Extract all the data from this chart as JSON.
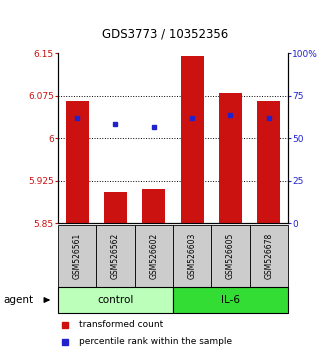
{
  "title": "GDS3773 / 10352356",
  "samples": [
    "GSM526561",
    "GSM526562",
    "GSM526602",
    "GSM526603",
    "GSM526605",
    "GSM526678"
  ],
  "bar_bottoms": [
    5.85,
    5.85,
    5.85,
    5.85,
    5.85,
    5.85
  ],
  "bar_tops": [
    6.065,
    5.905,
    5.91,
    6.145,
    6.08,
    6.065
  ],
  "percentile_values": [
    6.035,
    6.025,
    6.02,
    6.035,
    6.04,
    6.035
  ],
  "ylim_left": [
    5.85,
    6.15
  ],
  "ylim_right": [
    0,
    100
  ],
  "yticks_left": [
    5.85,
    5.925,
    6.0,
    6.075,
    6.15
  ],
  "yticks_right": [
    0,
    25,
    50,
    75,
    100
  ],
  "ytick_labels_left": [
    "5.85",
    "5.925",
    "6",
    "6.075",
    "6.15"
  ],
  "ytick_labels_right": [
    "0",
    "25",
    "50",
    "75",
    "100%"
  ],
  "hlines": [
    5.925,
    6.0,
    6.075
  ],
  "group_control_label": "control",
  "group_il6_label": "IL-6",
  "agent_label": "agent",
  "bar_color": "#cc1111",
  "percentile_color": "#2222cc",
  "control_bg": "#bbffbb",
  "il6_bg": "#33dd33",
  "sample_box_bg": "#cccccc",
  "legend_bar_label": "transformed count",
  "legend_pct_label": "percentile rank within the sample",
  "bar_width": 0.6,
  "title_fontsize": 8.5,
  "tick_fontsize": 6.5,
  "sample_fontsize": 5.5,
  "group_fontsize": 7.5,
  "legend_fontsize": 6.5,
  "agent_fontsize": 7.5
}
